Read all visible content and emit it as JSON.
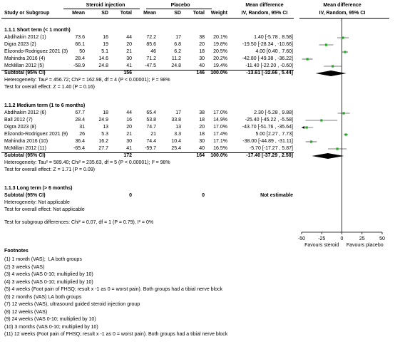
{
  "header": {
    "study_label": "Study or Subgroup",
    "exp_group": "Steroid injection",
    "ctl_group": "Placebo",
    "col_mean": "Mean",
    "col_sd": "SD",
    "col_total": "Total",
    "col_weight": "Weight",
    "effect_title": "Mean difference",
    "effect_sub": "IV, Random, 95% CI",
    "plot_title": "Mean difference",
    "plot_sub": "IV, Random, 95% CI"
  },
  "subgroups": [
    {
      "title": "1.1.1 Short term (&lt; 1 month)",
      "studies": [
        {
          "name": "Abdihakin 2012 (1)",
          "exp_mean": "73.6",
          "exp_sd": "16",
          "exp_total": "44",
          "ctl_mean": "72.2",
          "ctl_sd": "17",
          "ctl_total": "38",
          "weight": "20.1%",
          "ci": "1.40 [-5.78 , 8.58]",
          "md": 1.4,
          "lo": -5.78,
          "hi": 8.58
        },
        {
          "name": "Digra 2023 (2)",
          "exp_mean": "66.1",
          "exp_sd": "19",
          "exp_total": "20",
          "ctl_mean": "85.6",
          "ctl_sd": "6.8",
          "ctl_total": "20",
          "weight": "19.8%",
          "ci": "-19.50 [-28.34 , -10.66]",
          "md": -19.5,
          "lo": -28.34,
          "hi": -10.66
        },
        {
          "name": "Elizondo-Rodriguez 2021 (3)",
          "exp_mean": "50",
          "exp_sd": "5.1",
          "exp_total": "21",
          "ctl_mean": "46",
          "ctl_sd": "6.2",
          "ctl_total": "18",
          "weight": "20.5%",
          "ci": "4.00 [0.40 , 7.60]",
          "md": 4.0,
          "lo": 0.4,
          "hi": 7.6
        },
        {
          "name": "Mahindra 2016 (4)",
          "exp_mean": "28.4",
          "exp_sd": "14.6",
          "exp_total": "30",
          "ctl_mean": "71.2",
          "ctl_sd": "11.2",
          "ctl_total": "30",
          "weight": "20.2%",
          "ci": "-42.80 [-49.38 , -36.22]",
          "md": -42.8,
          "lo": -49.38,
          "hi": -36.22
        },
        {
          "name": "McMillan 2012 (5)",
          "exp_mean": "-58.9",
          "exp_sd": "24.8",
          "exp_total": "41",
          "ctl_mean": "-47.5",
          "ctl_sd": "24.8",
          "ctl_total": "40",
          "weight": "19.4%",
          "ci": "-11.40 [-22.20 , -0.60]",
          "md": -11.4,
          "lo": -22.2,
          "hi": -0.6
        }
      ],
      "subtotal": {
        "label": "Subtotal (95% CI)",
        "exp_total": "156",
        "ctl_total": "146",
        "weight": "100.0%",
        "ci": "-13.61 [-32.66 , 5.44]",
        "md": -13.61,
        "lo": -32.66,
        "hi": 5.44
      },
      "heterogeneity": "Heterogeneity: Tau² = 456.72; Chi² = 162.98, df = 4 (P < 0.00001); I² = 98%",
      "overall": "Test for overall effect: Z = 1.40 (P = 0.16)"
    },
    {
      "title": "1.1.2 Medium term (1 to 6 months)",
      "studies": [
        {
          "name": "Abdihakin 2012 (6)",
          "exp_mean": "67.7",
          "exp_sd": "18",
          "exp_total": "44",
          "ctl_mean": "65.4",
          "ctl_sd": "17",
          "ctl_total": "38",
          "weight": "17.0%",
          "ci": "2.30 [-5.28 , 9.88]",
          "md": 2.3,
          "lo": -5.28,
          "hi": 9.88
        },
        {
          "name": "Ball 2012 (7)",
          "exp_mean": "28.4",
          "exp_sd": "24.9",
          "exp_total": "16",
          "ctl_mean": "53.8",
          "ctl_sd": "33.8",
          "ctl_total": "18",
          "weight": "14.9%",
          "ci": "-25.40 [-45.22 , -5.58]",
          "md": -25.4,
          "lo": -45.22,
          "hi": -5.58
        },
        {
          "name": "Digra 2023 (8)",
          "exp_mean": "31",
          "exp_sd": "13",
          "exp_total": "20",
          "ctl_mean": "74.7",
          "ctl_sd": "13",
          "ctl_total": "20",
          "weight": "17.0%",
          "ci": "-43.70 [-51.76 , -35.64]",
          "md": -43.7,
          "lo": -51.76,
          "hi": -35.64
        },
        {
          "name": "Elizondo-Rodriguez 2021 (9)",
          "exp_mean": "26",
          "exp_sd": "5.3",
          "exp_total": "21",
          "ctl_mean": "21",
          "ctl_sd": "3.3",
          "ctl_total": "18",
          "weight": "17.4%",
          "ci": "5.00 [2.27 , 7.73]",
          "md": 5.0,
          "lo": 2.27,
          "hi": 7.73
        },
        {
          "name": "Mahindra 2016 (10)",
          "exp_mean": "36.4",
          "exp_sd": "16.2",
          "exp_total": "30",
          "ctl_mean": "74.4",
          "ctl_sd": "10.4",
          "ctl_total": "30",
          "weight": "17.1%",
          "ci": "-38.00 [-44.89 , -31.11]",
          "md": -38.0,
          "lo": -44.89,
          "hi": -31.11
        },
        {
          "name": "McMillan 2012 (11)",
          "exp_mean": "-65.4",
          "exp_sd": "27.7",
          "exp_total": "41",
          "ctl_mean": "-59.7",
          "ctl_sd": "25.4",
          "ctl_total": "40",
          "weight": "16.5%",
          "ci": "-5.70 [-17.27 , 5.87]",
          "md": -5.7,
          "lo": -17.27,
          "hi": 5.87
        }
      ],
      "subtotal": {
        "label": "Subtotal (95% CI)",
        "exp_total": "172",
        "ctl_total": "164",
        "weight": "100.0%",
        "ci": "-17.40 [-37.29 , 2.50]",
        "md": -17.4,
        "lo": -37.29,
        "hi": 2.5
      },
      "heterogeneity": "Heterogeneity: Tau² = 589.40; Chi² = 235.63, df = 5 (P < 0.00001); I² = 98%",
      "overall": "Test for overall effect: Z = 1.71 (P = 0.09)"
    },
    {
      "title": "1.1.3 Long term (&gt; 6 months)",
      "studies": [],
      "subtotal": {
        "label": "Subtotal (95% CI)",
        "exp_total": "0",
        "ctl_total": "0",
        "weight": "",
        "ci": "Not estimable"
      },
      "heterogeneity": "Heterogeneity: Not applicable",
      "overall": "Test for overall effect: Not applicable"
    }
  ],
  "subgroup_diff": "Test for subgroup differences: Chi² = 0.07, df = 1 (P = 0.79), I² = 0%",
  "chart_data": {
    "type": "forest",
    "xlim": [
      -50,
      50
    ],
    "ticks": [
      -50,
      -25,
      0,
      25,
      50
    ],
    "tick_labels": [
      "-50",
      "-25",
      "0",
      "25",
      "50"
    ],
    "left_label": "Favours steroid",
    "right_label": "Favours placebo",
    "square_color": "#22aa22",
    "diamond_color": "#000000",
    "studies": [
      {
        "name": "Abdihakin 2012 (1)",
        "md": 1.4,
        "lo": -5.78,
        "hi": 8.58
      },
      {
        "name": "Digra 2023 (2)",
        "md": -19.5,
        "lo": -28.34,
        "hi": -10.66
      },
      {
        "name": "Elizondo-Rodriguez 2021 (3)",
        "md": 4.0,
        "lo": 0.4,
        "hi": 7.6
      },
      {
        "name": "Mahindra 2016 (4)",
        "md": -42.8,
        "lo": -49.38,
        "hi": -36.22
      },
      {
        "name": "McMillan 2012 (5)",
        "md": -11.4,
        "lo": -22.2,
        "hi": -0.6
      },
      {
        "name": "Abdihakin 2012 (6)",
        "md": 2.3,
        "lo": -5.28,
        "hi": 9.88
      },
      {
        "name": "Ball 2012 (7)",
        "md": -25.4,
        "lo": -45.22,
        "hi": -5.58
      },
      {
        "name": "Digra 2023 (8)",
        "md": -43.7,
        "lo": -51.76,
        "hi": -35.64
      },
      {
        "name": "Elizondo-Rodriguez 2021 (9)",
        "md": 5.0,
        "lo": 2.27,
        "hi": 7.73
      },
      {
        "name": "Mahindra 2016 (10)",
        "md": -38.0,
        "lo": -44.89,
        "hi": -31.11
      },
      {
        "name": "McMillan 2012 (11)",
        "md": -5.7,
        "lo": -17.27,
        "hi": 5.87
      }
    ],
    "subtotals": [
      {
        "subgroup": "1.1.1 Short term",
        "md": -13.61,
        "lo": -32.66,
        "hi": 5.44
      },
      {
        "subgroup": "1.1.2 Medium term",
        "md": -17.4,
        "lo": -37.29,
        "hi": 2.5
      }
    ]
  },
  "footnotes": {
    "title": "Footnotes",
    "items": [
      "(1) 1 month (VAS);  LA both groups",
      "(2) 3 weeks (VAS)",
      "(3) 4 weeks (VAS 0-10; multiplied by 10)",
      "(4) 3 weeks (VAS 0-10; multiplied by 10)",
      "(5) 4 weeks (Foot pain of FHSQ; result x -1 as 0 = worst pain). Both groups had a tibial nerve block",
      "(6) 2 months (VAS) LA both groups",
      "(7) 12 weeks (VAS), ultrasound guided steroid injection group",
      "(8) 12 weeks (VAS)",
      "(9) 24 weeks (VAS 0-10; multiplied by 10)",
      "(10) 3 months (VAS 0-10; multiplied by 10)",
      "(11) 12 weeks (Foot pain of FHSQ; result x -1 as 0 = worst pain). Both groups had a tibial nerve block"
    ]
  }
}
